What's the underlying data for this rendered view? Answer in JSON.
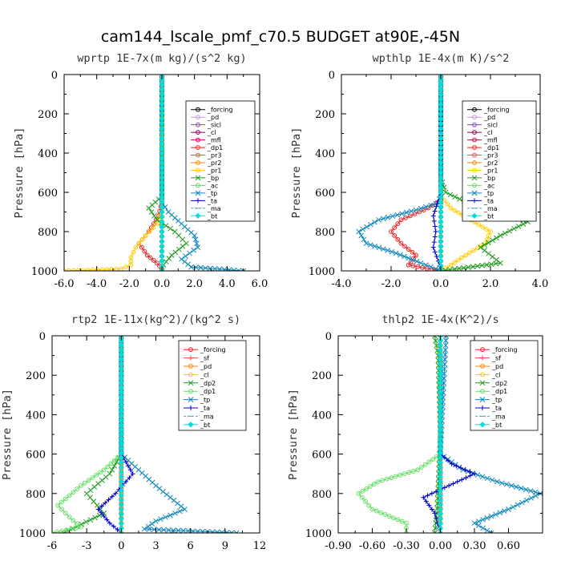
{
  "title": "cam144_lscale_pmf_c70.5  BUDGET at90E,-45N",
  "chart_data": [
    {
      "type": "line",
      "title": "wprtp  1E-7x(m kg)/(s^2 kg)",
      "ylabel": "Pressure [hPa]",
      "xlim": [
        -6,
        6
      ],
      "ylim": [
        1000,
        0
      ],
      "xticks": [
        -6,
        -4,
        -2,
        0,
        2,
        4,
        6
      ],
      "xtick_labels": [
        "-6.0",
        "-4.0",
        "-2.0",
        "0.0",
        "2.0",
        "4.0",
        "6.0"
      ],
      "yticks": [
        0,
        200,
        400,
        600,
        800,
        1000
      ],
      "ytick_labels": [
        "0",
        "200",
        "400",
        "600",
        "800",
        "1000"
      ],
      "legend": "top-right",
      "series": [
        {
          "name": "_forcing",
          "color": "#000000",
          "marker": "circle",
          "x": [
            0,
            0,
            0,
            0,
            0,
            0,
            0,
            0
          ],
          "y": [
            0,
            150,
            300,
            450,
            600,
            750,
            900,
            1000
          ]
        },
        {
          "name": "_pd",
          "color": "#cc99dd",
          "marker": "circle",
          "x": [
            0,
            0,
            0
          ],
          "y": [
            0,
            500,
            1000
          ]
        },
        {
          "name": "_sicl",
          "color": "#8844cc",
          "marker": "circle",
          "x": [
            0,
            0,
            0
          ],
          "y": [
            0,
            500,
            1000
          ]
        },
        {
          "name": "_cl",
          "color": "#880055",
          "marker": "circle",
          "x": [
            0,
            0,
            0
          ],
          "y": [
            0,
            500,
            1000
          ]
        },
        {
          "name": "_mfl",
          "color": "#cc0055",
          "marker": "circle",
          "x": [
            0,
            0,
            0
          ],
          "y": [
            0,
            500,
            1000
          ]
        },
        {
          "name": "_dp1",
          "color": "#ee2222",
          "marker": "circle",
          "x": [
            0,
            0,
            -0.2,
            -0.8,
            -1.4,
            -0.9,
            -0.3,
            0,
            0
          ],
          "y": [
            0,
            650,
            720,
            800,
            860,
            920,
            960,
            990,
            1000
          ]
        },
        {
          "name": "_pr3",
          "color": "#ff4444",
          "marker": "circle",
          "x": [
            0,
            0,
            0
          ],
          "y": [
            0,
            500,
            1000
          ]
        },
        {
          "name": "_pr2",
          "color": "#ee8800",
          "marker": "circle",
          "x": [
            0,
            0,
            0
          ],
          "y": [
            0,
            500,
            1000
          ]
        },
        {
          "name": "_pr1",
          "color": "#ffcc00",
          "marker": "circle",
          "x": [
            0,
            0,
            -0.3,
            -1.0,
            -1.6,
            -1.9,
            -1.9,
            -2.5,
            -6.0
          ],
          "y": [
            0,
            700,
            760,
            820,
            880,
            930,
            970,
            990,
            1000
          ]
        },
        {
          "name": "_bp",
          "color": "#229922",
          "marker": "x",
          "x": [
            0,
            0,
            -0.8,
            -0.3,
            0.8,
            1.5,
            0.6,
            0.1,
            0
          ],
          "y": [
            0,
            620,
            680,
            740,
            800,
            860,
            920,
            970,
            1000
          ]
        },
        {
          "name": "_ac",
          "color": "#66dd66",
          "marker": "circle",
          "x": [
            0,
            0,
            0
          ],
          "y": [
            0,
            500,
            1000
          ]
        },
        {
          "name": "_tp",
          "color": "#1188bb",
          "marker": "x",
          "x": [
            0,
            0,
            0.4,
            1.2,
            2.0,
            2.2,
            1.2,
            1.8,
            5.0
          ],
          "y": [
            0,
            650,
            700,
            760,
            820,
            880,
            940,
            980,
            1000
          ]
        },
        {
          "name": "_ta",
          "color": "#0000cc",
          "marker": "plus",
          "x": [
            0,
            0,
            0
          ],
          "y": [
            0,
            500,
            1000
          ]
        },
        {
          "name": "_ma",
          "color": "#44aacc",
          "marker": "dash",
          "x": [
            0,
            0,
            0
          ],
          "y": [
            0,
            500,
            1000
          ]
        },
        {
          "name": "_bt",
          "color": "#00dddd",
          "marker": "diamond",
          "x": [
            0,
            0,
            0
          ],
          "y": [
            0,
            500,
            1000
          ]
        }
      ]
    },
    {
      "type": "line",
      "title": "wpthlp  1E-4x(m K)/s^2",
      "ylabel": "Pressure [hPa]",
      "xlim": [
        -4,
        4
      ],
      "ylim": [
        1000,
        0
      ],
      "xticks": [
        -4,
        -2,
        0,
        2,
        4
      ],
      "xtick_labels": [
        "-4.0",
        "-2.0",
        "0.0",
        "2.0",
        "4.0"
      ],
      "yticks": [
        0,
        200,
        400,
        600,
        800,
        1000
      ],
      "ytick_labels": [
        "0",
        "200",
        "400",
        "600",
        "800",
        "1000"
      ],
      "legend": "top-right",
      "series": [
        {
          "name": "_forcing",
          "color": "#000000",
          "marker": "circle",
          "x": [
            0,
            0,
            0
          ],
          "y": [
            0,
            500,
            1000
          ]
        },
        {
          "name": "_pd",
          "color": "#cc99dd",
          "marker": "circle",
          "x": [
            0,
            0,
            0,
            0,
            0,
            0,
            0,
            0
          ],
          "y": [
            0,
            150,
            300,
            450,
            600,
            750,
            900,
            1000
          ]
        },
        {
          "name": "_sicl",
          "color": "#8844cc",
          "marker": "circle",
          "x": [
            0,
            0,
            0
          ],
          "y": [
            0,
            500,
            1000
          ]
        },
        {
          "name": "_cl",
          "color": "#880055",
          "marker": "circle",
          "x": [
            0,
            0,
            0
          ],
          "y": [
            0,
            500,
            1000
          ]
        },
        {
          "name": "_mfl",
          "color": "#cc0055",
          "marker": "circle",
          "x": [
            0,
            0,
            0
          ],
          "y": [
            0,
            500,
            1000
          ]
        },
        {
          "name": "_dp1",
          "color": "#ee2222",
          "marker": "circle",
          "x": [
            0,
            0,
            -0.5,
            -1.6,
            -2.0,
            -1.6,
            -1.0,
            -1.3,
            0
          ],
          "y": [
            0,
            640,
            680,
            740,
            800,
            860,
            920,
            970,
            1000
          ]
        },
        {
          "name": "_pr3",
          "color": "#ff4444",
          "marker": "circle",
          "x": [
            0,
            0,
            0
          ],
          "y": [
            0,
            500,
            1000
          ]
        },
        {
          "name": "_pr2",
          "color": "#ee8800",
          "marker": "circle",
          "x": [
            0,
            0,
            0
          ],
          "y": [
            0,
            500,
            1000
          ]
        },
        {
          "name": "_pr1",
          "color": "#ffcc00",
          "marker": "circle",
          "x": [
            0,
            0,
            0.4,
            1.2,
            2.0,
            1.8,
            1.0,
            0.4,
            0
          ],
          "y": [
            0,
            620,
            680,
            740,
            800,
            860,
            920,
            970,
            1000
          ]
        },
        {
          "name": "_bp",
          "color": "#229922",
          "marker": "x",
          "x": [
            0,
            0,
            0.2,
            1.5,
            3.5,
            2.4,
            1.6,
            2.4,
            0
          ],
          "y": [
            0,
            520,
            600,
            680,
            750,
            820,
            880,
            960,
            1000
          ]
        },
        {
          "name": "_ac",
          "color": "#66dd66",
          "marker": "circle",
          "x": [
            0,
            0,
            0
          ],
          "y": [
            0,
            500,
            1000
          ]
        },
        {
          "name": "_tp",
          "color": "#1188bb",
          "marker": "x",
          "x": [
            0,
            0,
            -1.0,
            -2.5,
            -3.3,
            -3.0,
            -1.8,
            -0.8,
            0
          ],
          "y": [
            0,
            650,
            690,
            740,
            800,
            860,
            910,
            960,
            1000
          ]
        },
        {
          "name": "_ta",
          "color": "#0000cc",
          "marker": "plus",
          "x": [
            0,
            0,
            -0.3,
            -0.2,
            -0.3,
            -0.1,
            0
          ],
          "y": [
            0,
            600,
            720,
            800,
            880,
            950,
            1000
          ]
        },
        {
          "name": "_ma",
          "color": "#44aacc",
          "marker": "dash",
          "x": [
            0,
            0,
            0
          ],
          "y": [
            0,
            500,
            1000
          ]
        },
        {
          "name": "_bt",
          "color": "#00dddd",
          "marker": "diamond",
          "x": [
            0,
            0,
            0
          ],
          "y": [
            0,
            500,
            1000
          ]
        }
      ]
    },
    {
      "type": "line",
      "title": "rtp2  1E-11x(kg^2)/(kg^2 s)",
      "ylabel": "Pressure [hPa]",
      "xlim": [
        -6,
        12
      ],
      "ylim": [
        1000,
        0
      ],
      "xticks": [
        -6,
        -3,
        0,
        3,
        6,
        9,
        12
      ],
      "xtick_labels": [
        "-6",
        "-3",
        "0",
        "3",
        "6",
        "9",
        "12"
      ],
      "yticks": [
        0,
        200,
        400,
        600,
        800,
        1000
      ],
      "ytick_labels": [
        "0",
        "200",
        "400",
        "600",
        "800",
        "1000"
      ],
      "legend": "top-right",
      "series": [
        {
          "name": "_forcing",
          "color": "#ee2222",
          "marker": "circle",
          "x": [
            0,
            0,
            0,
            0,
            0,
            0,
            0,
            0
          ],
          "y": [
            0,
            150,
            300,
            450,
            600,
            750,
            900,
            1000
          ]
        },
        {
          "name": "_sf",
          "color": "#ff4444",
          "marker": "plus",
          "x": [
            0,
            0,
            0
          ],
          "y": [
            0,
            500,
            1000
          ]
        },
        {
          "name": "_pd",
          "color": "#ee8800",
          "marker": "circle",
          "x": [
            0,
            0,
            0
          ],
          "y": [
            0,
            500,
            1000
          ]
        },
        {
          "name": "_cl",
          "color": "#ffcc00",
          "marker": "circle",
          "x": [
            0,
            0,
            0
          ],
          "y": [
            0,
            500,
            1000
          ]
        },
        {
          "name": "_dp2",
          "color": "#229922",
          "marker": "x",
          "x": [
            0,
            0,
            -1.0,
            -3.0,
            -1.5,
            -5.0
          ],
          "y": [
            0,
            600,
            700,
            800,
            900,
            1000
          ]
        },
        {
          "name": "_dp1",
          "color": "#66dd66",
          "marker": "circle",
          "x": [
            0,
            0,
            -1.5,
            -3.5,
            -5.5,
            -4.5,
            -3.5,
            -6.0
          ],
          "y": [
            0,
            600,
            680,
            760,
            860,
            920,
            970,
            1000
          ]
        },
        {
          "name": "_tp",
          "color": "#1188bb",
          "marker": "x",
          "x": [
            0,
            0,
            1.5,
            3.0,
            5.5,
            3.0,
            2.0,
            10.0
          ],
          "y": [
            0,
            600,
            680,
            760,
            880,
            940,
            980,
            1000
          ]
        },
        {
          "name": "_ta",
          "color": "#0000cc",
          "marker": "plus",
          "x": [
            0,
            0,
            1.0,
            -0.5,
            -2.0,
            -1.0,
            0
          ],
          "y": [
            0,
            600,
            700,
            800,
            880,
            950,
            1000
          ]
        },
        {
          "name": "_ma",
          "color": "#44aacc",
          "marker": "dash",
          "x": [
            0,
            0,
            0
          ],
          "y": [
            0,
            500,
            1000
          ]
        },
        {
          "name": "_bt",
          "color": "#00dddd",
          "marker": "diamond",
          "x": [
            0,
            0,
            0
          ],
          "y": [
            0,
            500,
            1000
          ]
        }
      ]
    },
    {
      "type": "line",
      "title": "thlp2  1E-4x(K^2)/s",
      "ylabel": "Pressure [hPa]",
      "xlim": [
        -0.9,
        0.9
      ],
      "ylim": [
        1000,
        0
      ],
      "xticks": [
        -0.9,
        -0.6,
        -0.3,
        0,
        0.3,
        0.6
      ],
      "xtick_labels": [
        "-0.90",
        "-0.60",
        "-0.30",
        "0.00",
        "0.30",
        "0.60"
      ],
      "yticks": [
        0,
        200,
        400,
        600,
        800,
        1000
      ],
      "ytick_labels": [
        "0",
        "200",
        "400",
        "600",
        "800",
        "1000"
      ],
      "legend": "top-right",
      "series": [
        {
          "name": "_forcing",
          "color": "#ee2222",
          "marker": "circle",
          "x": [
            0,
            0,
            0,
            0,
            0,
            0,
            0,
            0
          ],
          "y": [
            0,
            150,
            300,
            450,
            600,
            750,
            900,
            1000
          ]
        },
        {
          "name": "_sf",
          "color": "#ff4444",
          "marker": "plus",
          "x": [
            0,
            0,
            0
          ],
          "y": [
            0,
            500,
            1000
          ]
        },
        {
          "name": "_pd",
          "color": "#ee8800",
          "marker": "circle",
          "x": [
            0,
            0,
            0
          ],
          "y": [
            0,
            500,
            1000
          ]
        },
        {
          "name": "_cl",
          "color": "#ffcc00",
          "marker": "circle",
          "x": [
            0,
            0,
            0
          ],
          "y": [
            0,
            500,
            1000
          ]
        },
        {
          "name": "_dp2",
          "color": "#229922",
          "marker": "x",
          "x": [
            -0.05,
            -0.02,
            0,
            -0.03,
            -0.05
          ],
          "y": [
            0,
            100,
            500,
            900,
            1000
          ]
        },
        {
          "name": "_dp1",
          "color": "#66dd66",
          "marker": "circle",
          "x": [
            0,
            0,
            -0.2,
            -0.55,
            -0.72,
            -0.6,
            -0.3,
            -0.3
          ],
          "y": [
            0,
            600,
            680,
            740,
            800,
            880,
            950,
            1000
          ]
        },
        {
          "name": "_tp",
          "color": "#1188bb",
          "marker": "x",
          "x": [
            0.05,
            0,
            0.2,
            0.5,
            0.88,
            0.6,
            0.3,
            0.45
          ],
          "y": [
            0,
            600,
            680,
            740,
            800,
            880,
            950,
            1000
          ]
        },
        {
          "name": "_ta",
          "color": "#0000cc",
          "marker": "plus",
          "x": [
            0,
            0,
            0.1,
            0.3,
            -0.15,
            -0.05,
            0
          ],
          "y": [
            0,
            600,
            650,
            700,
            820,
            900,
            1000
          ]
        },
        {
          "name": "_ma",
          "color": "#44aacc",
          "marker": "dash",
          "x": [
            0,
            0,
            0
          ],
          "y": [
            0,
            500,
            1000
          ]
        },
        {
          "name": "_bt",
          "color": "#00dddd",
          "marker": "diamond",
          "x": [
            0,
            0,
            0
          ],
          "y": [
            0,
            500,
            1000
          ]
        }
      ]
    }
  ]
}
